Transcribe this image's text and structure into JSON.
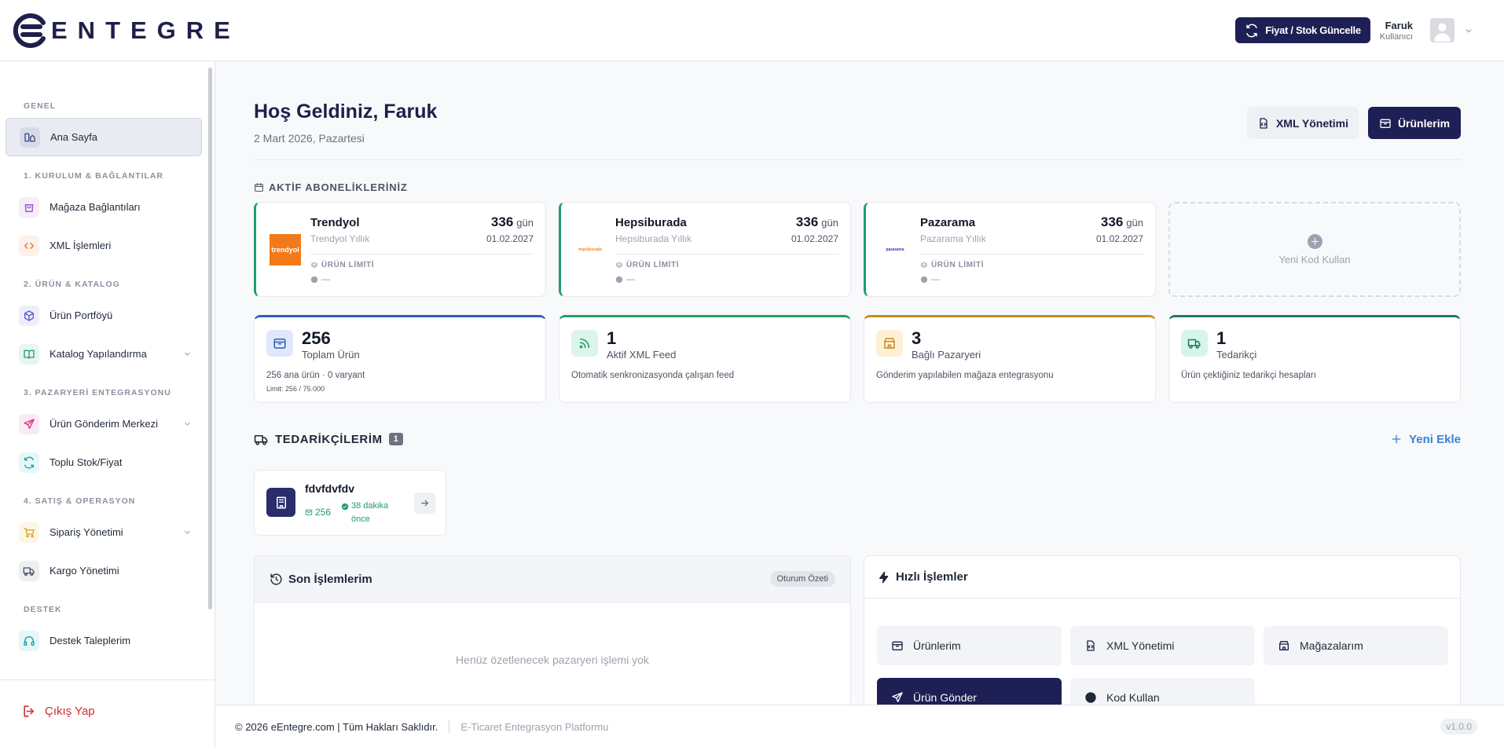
{
  "header": {
    "brand": "ENTEGRE",
    "sync_button": "Fiyat / Stok Güncelle",
    "user": {
      "name": "Faruk",
      "role": "Kullanıcı"
    }
  },
  "sidebar": {
    "sections": [
      {
        "title": "GENEL",
        "items": [
          {
            "label": "Ana Sayfa",
            "active": true,
            "color": "#3b4a8c"
          }
        ]
      },
      {
        "title": "1. KURULUM & BAĞLANTILAR",
        "items": [
          {
            "label": "Mağaza Bağlantıları",
            "color": "#9b4dca"
          },
          {
            "label": "XML İşlemleri",
            "color": "#e8742a"
          }
        ]
      },
      {
        "title": "2. ÜRÜN & KATALOG",
        "items": [
          {
            "label": "Ürün Portföyü",
            "color": "#5b5bd6"
          },
          {
            "label": "Katalog Yapılandırma",
            "color": "#1f9d6a",
            "expandable": true
          }
        ]
      },
      {
        "title": "3. PAZARYERİ ENTEGRASYONU",
        "items": [
          {
            "label": "Ürün Gönderim Merkezi",
            "color": "#d6338a",
            "expandable": true
          },
          {
            "label": "Toplu Stok/Fiyat",
            "color": "#14a3a3"
          }
        ]
      },
      {
        "title": "4. SATIŞ & OPERASYON",
        "items": [
          {
            "label": "Sipariş Yönetimi",
            "color": "#e0a21a",
            "expandable": true
          },
          {
            "label": "Kargo Yönetimi",
            "color": "#4a5568"
          }
        ]
      },
      {
        "title": "DESTEK",
        "items": [
          {
            "label": "Destek Taleplerim",
            "color": "#14a3a3"
          }
        ]
      }
    ],
    "logout": "Çıkış Yap"
  },
  "main": {
    "title": "Hoş Geldiniz, Faruk",
    "date": "2 Mart 2026, Pazartesi",
    "buttons": [
      "XML Yönetimi",
      "Ürünlerim"
    ],
    "subscriptions": {
      "title": "AKTİF ABONELİKLERİNİZ",
      "cards": [
        {
          "name": "Trendyol",
          "plan": "Trendyol Yıllık",
          "days": 336,
          "days_unit": "gün",
          "end_date": "01.02.2027",
          "limit_label": "ÜRÜN LİMİTİ",
          "limit_value": "—",
          "logo": "trendyol",
          "logo_color": "#ffffff",
          "logo_bg": "#f27a1a"
        },
        {
          "name": "Hepsiburada",
          "plan": "Hepsiburada Yıllık",
          "days": 336,
          "days_unit": "gün",
          "end_date": "01.02.2027",
          "limit_label": "ÜRÜN LİMİTİ",
          "limit_value": "—",
          "logo": "hepsiburada",
          "logo_color": "#f28a1a",
          "logo_bg": "#ffffff"
        },
        {
          "name": "Pazarama",
          "plan": "Pazarama Yıllık",
          "days": 336,
          "days_unit": "gün",
          "end_date": "01.02.2027",
          "limit_label": "ÜRÜN LİMİTİ",
          "limit_value": "—",
          "logo": "pazarama",
          "logo_color": "#2b3fb0",
          "logo_bg": "#ffffff"
        }
      ],
      "add_card": "Yeni Kod Kullan"
    },
    "stats": [
      {
        "value": 256,
        "label": "Toplam Ürün",
        "desc": "256 ana ürün · 0 varyant",
        "note": "Limit: 256 / 75.000",
        "color": "#2f5fb3",
        "tint": "#dfe8fb"
      },
      {
        "value": 1,
        "label": "Aktif XML Feed",
        "desc": "Otomatik senkronizasyonda çalışan feed",
        "color": "#1f9d6a",
        "tint": "#dcf5e8"
      },
      {
        "value": 3,
        "label": "Bağlı Pazaryeri",
        "desc": "Gönderim yapılabilen mağaza entegrasyonu",
        "color": "#c98a1c",
        "tint": "#fdf0d5"
      },
      {
        "value": 1,
        "label": "Tedarikçi",
        "desc": "Ürün çektiğiniz tedarikçi hesapları",
        "color": "#1e7a60",
        "tint": "#d5f5ea"
      }
    ],
    "suppliers": {
      "title": "TEDARİKÇİLERİM",
      "count": 1,
      "add": "Yeni Ekle",
      "items": [
        {
          "name": "fdvfdvfdv",
          "products": 256,
          "updated": "38 dakika önce"
        }
      ]
    },
    "recent": {
      "title": "Son İşlemlerim",
      "badge": "Oturum Özeti",
      "empty": "Henüz özetlenecek pazaryeri işlemi yok"
    },
    "quick": {
      "title": "Hızlı İşlemler",
      "actions": [
        {
          "label": "Ürünlerim"
        },
        {
          "label": "XML Yönetimi"
        },
        {
          "label": "Mağazalarım"
        },
        {
          "label": "Ürün Gönder",
          "primary": true
        },
        {
          "label": "Kod Kullan"
        }
      ]
    }
  },
  "footer": {
    "copyright": "© 2026 eEntegre.com | Tüm Hakları Saklıdır.",
    "tagline": "E-Ticaret Entegrasyon Platformu",
    "version": "v1.0.0"
  }
}
